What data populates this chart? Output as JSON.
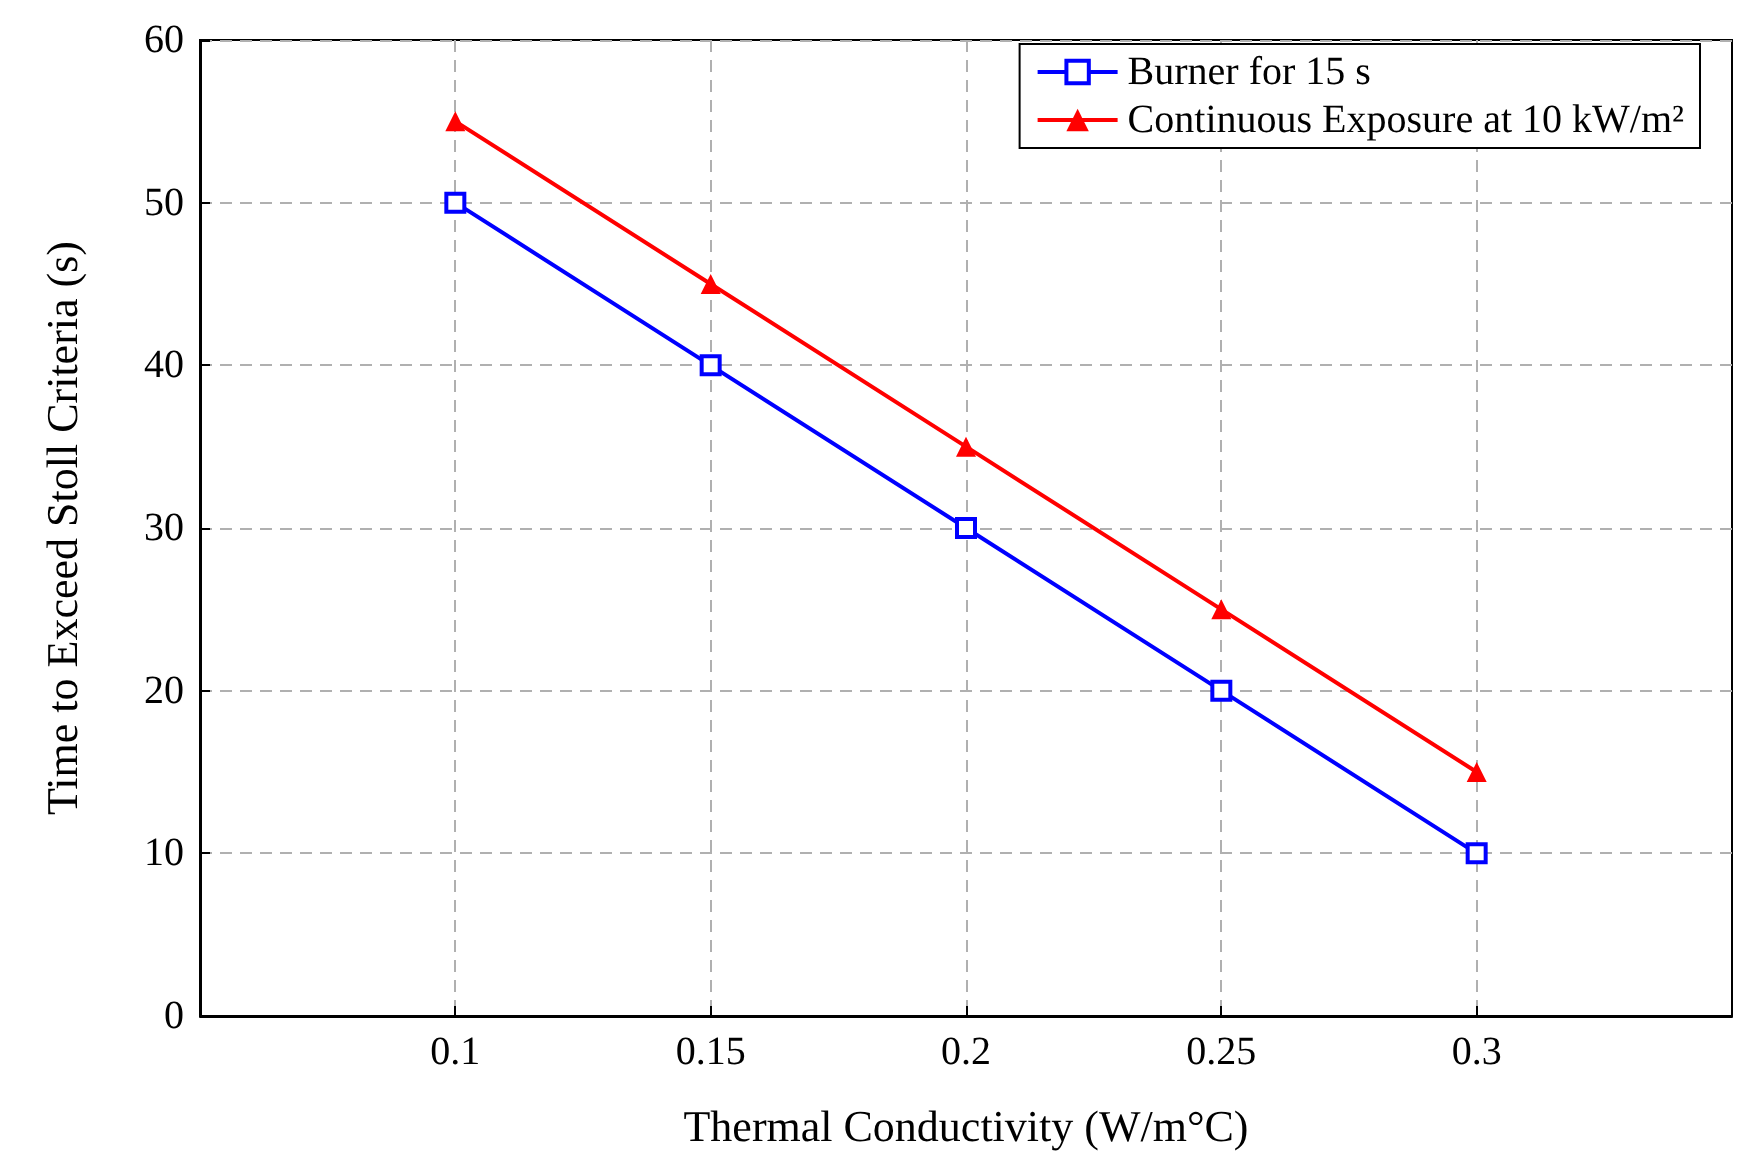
{
  "chart_data": {
    "type": "line",
    "xlabel": "Thermal Conductivity (W/m°C)",
    "ylabel": "Time to Exceed Stoll Criteria (s)",
    "xlim": [
      0.05,
      0.35
    ],
    "xticks": [
      0.1,
      0.15,
      0.2,
      0.25,
      0.3
    ],
    "ylim": [
      0,
      60
    ],
    "yticks": [
      0,
      10,
      20,
      30,
      40,
      50,
      60
    ],
    "x": [
      0.1,
      0.15,
      0.2,
      0.25,
      0.3
    ],
    "series": [
      {
        "name": "Burner for 15 s",
        "color": "#0000ff",
        "marker": "square",
        "values": [
          50,
          40,
          30,
          20,
          10
        ]
      },
      {
        "name": "Continuous Exposure at 10 kW/m²",
        "color": "#ff0000",
        "marker": "triangle",
        "values": [
          55,
          45,
          35,
          25,
          15
        ]
      }
    ],
    "grid": true,
    "legend": "top right",
    "line_style": "solid"
  }
}
